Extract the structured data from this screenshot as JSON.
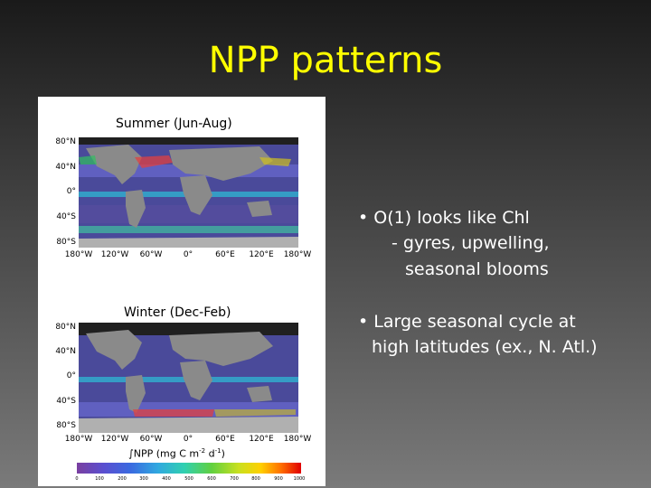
{
  "slide": {
    "title": "NPP patterns",
    "title_color": "#ffff00",
    "text_color": "#ffffff"
  },
  "figure": {
    "panels": [
      {
        "label": "Summer (Jun-Aug)"
      },
      {
        "label": "Winter (Dec-Feb)"
      }
    ],
    "lat_labels": [
      "80°N",
      "40°N",
      "0°",
      "40°S",
      "80°S"
    ],
    "lon_labels": [
      "180°W",
      "120°W",
      "60°W",
      "0°",
      "60°E",
      "120°E",
      "180°W"
    ],
    "colorbar": {
      "label_prefix": "∫NPP (mg C m",
      "label_exp1": "-2",
      "label_mid": " d",
      "label_exp2": "-1",
      "label_suffix": ")",
      "ticks": [
        "0",
        "100",
        "200",
        "300",
        "400",
        "500",
        "600",
        "700",
        "800",
        "900",
        "1000"
      ]
    }
  },
  "bullets": [
    {
      "line1": "• O(1) looks like Chl",
      "line2": "- gyres, upwelling,",
      "line3": "seasonal blooms"
    },
    {
      "line1": "• Large seasonal cycle at",
      "line2": "high latitudes (ex., N. Atl.)"
    }
  ]
}
